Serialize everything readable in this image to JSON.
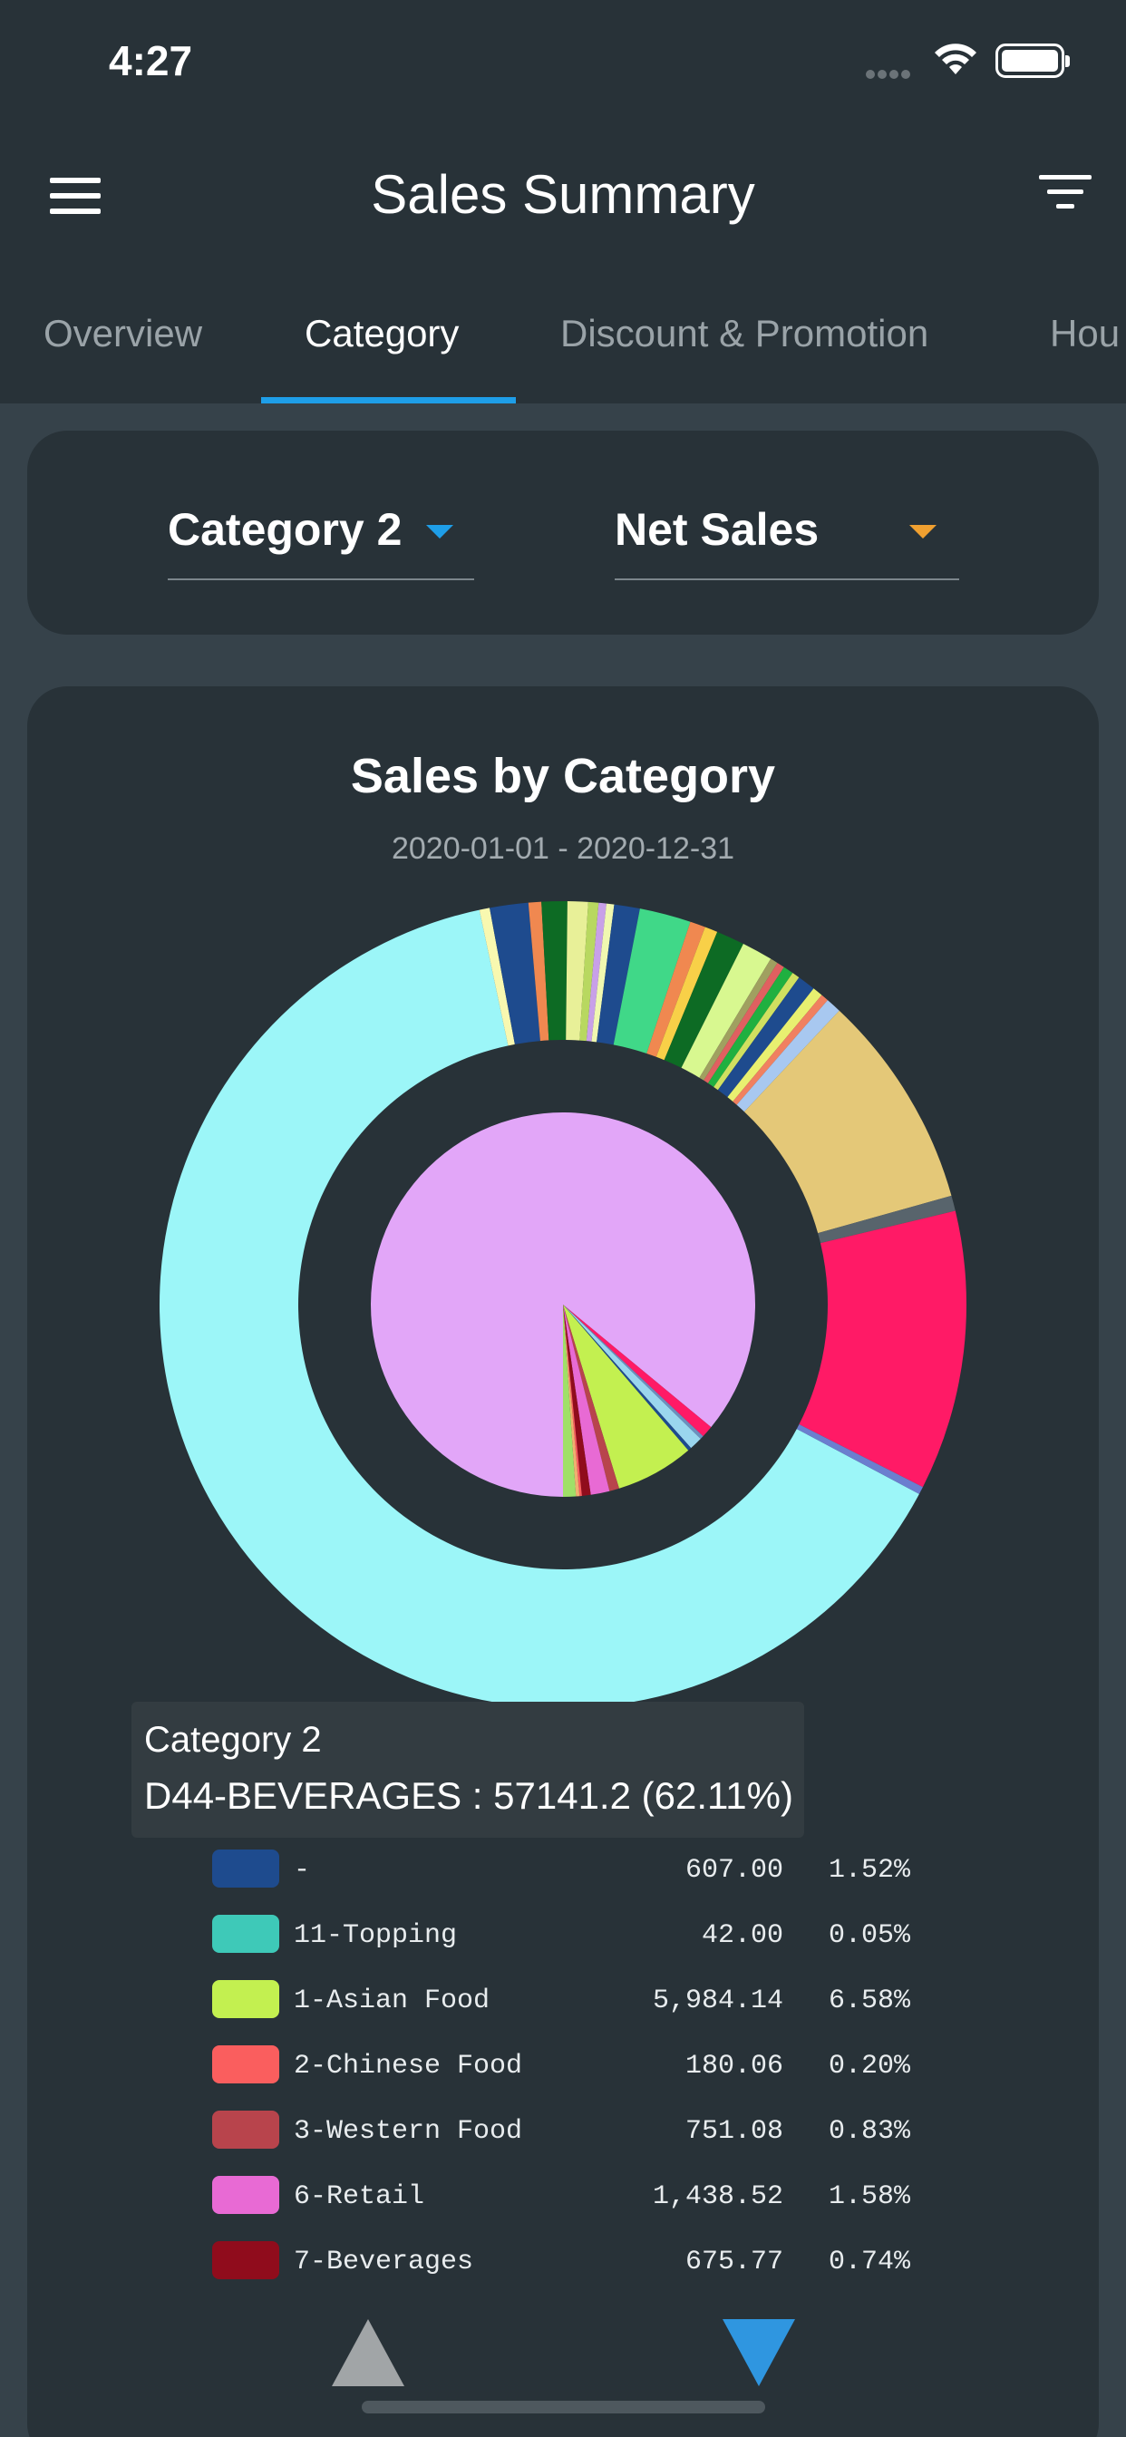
{
  "status": {
    "time": "4:27"
  },
  "header": {
    "title": "Sales Summary"
  },
  "tabs": [
    {
      "label": "Overview"
    },
    {
      "label": "Category"
    },
    {
      "label": "Discount & Promotion"
    },
    {
      "label": "Hou"
    }
  ],
  "selectors": {
    "category": "Category 2",
    "metric": "Net Sales"
  },
  "chart": {
    "title": "Sales by Category",
    "subtitle": "2020-01-01 - 2020-12-31"
  },
  "tooltip": {
    "line1": "Category 2",
    "line2": "D44-BEVERAGES : 57141.2 (62.11%)"
  },
  "legend": [
    {
      "name": "-",
      "value": "607.00",
      "percent": "1.52%",
      "color": "#1e4b8e"
    },
    {
      "name": "11-Topping",
      "value": "42.00",
      "percent": "0.05%",
      "color": "#3ec9b8"
    },
    {
      "name": "1-Asian Food",
      "value": "5,984.14",
      "percent": "6.58%",
      "color": "#c3f050"
    },
    {
      "name": "2-Chinese Food",
      "value": "180.06",
      "percent": "0.20%",
      "color": "#fa5e5e"
    },
    {
      "name": "3-Western Food",
      "value": "751.08",
      "percent": "0.83%",
      "color": "#b8444c"
    },
    {
      "name": "6-Retail",
      "value": "1,438.52",
      "percent": "1.58%",
      "color": "#e86ad4"
    },
    {
      "name": "7-Beverages",
      "value": "675.77",
      "percent": "0.74%",
      "color": "#900c1c"
    }
  ],
  "chart_data": {
    "type": "pie",
    "title": "Sales by Category",
    "subtitle": "2020-01-01 - 2020-12-31",
    "inner": [
      {
        "color": "#e2a6f8",
        "percent": 86.0
      },
      {
        "color": "#ff1a66",
        "percent": 1.0
      },
      {
        "color": "#6b8fbf",
        "percent": 0.3
      },
      {
        "color": "#9ad6ee",
        "percent": 1.1
      },
      {
        "color": "#1e4b8e",
        "percent": 0.3
      },
      {
        "color": "#c3f050",
        "percent": 6.58
      },
      {
        "color": "#b8444c",
        "percent": 0.83
      },
      {
        "color": "#e86ad4",
        "percent": 1.58
      },
      {
        "color": "#900c1c",
        "percent": 0.74
      },
      {
        "color": "#fa5e5e",
        "percent": 0.2
      },
      {
        "color": "#f0b070",
        "percent": 0.3
      },
      {
        "color": "#a0e068",
        "percent": 1.07
      }
    ],
    "outer": [
      {
        "color": "#9cf6f8",
        "percent": 62.11,
        "label": "D44-BEVERAGES"
      },
      {
        "color": "#f8f8b0",
        "percent": 0.4
      },
      {
        "color": "#1e4b8e",
        "percent": 1.5
      },
      {
        "color": "#f08850",
        "percent": 0.5
      },
      {
        "color": "#0d6b24",
        "percent": 1.0
      },
      {
        "color": "#e8f098",
        "percent": 0.8
      },
      {
        "color": "#b8d860",
        "percent": 0.4
      },
      {
        "color": "#c8a0e8",
        "percent": 0.3
      },
      {
        "color": "#f0f8b0",
        "percent": 0.3
      },
      {
        "color": "#1e4b8e",
        "percent": 1.0
      },
      {
        "color": "#40d888",
        "percent": 2.0
      },
      {
        "color": "#f08850",
        "percent": 0.6
      },
      {
        "color": "#f8d048",
        "percent": 0.5
      },
      {
        "color": "#0d6b24",
        "percent": 1.1
      },
      {
        "color": "#d8f890",
        "percent": 1.2
      },
      {
        "color": "#a0a060",
        "percent": 0.3
      },
      {
        "color": "#e06060",
        "percent": 0.3
      },
      {
        "color": "#20b040",
        "percent": 0.4
      },
      {
        "color": "#d0e060",
        "percent": 0.3
      },
      {
        "color": "#1e4b8e",
        "percent": 0.7
      },
      {
        "color": "#e8f070",
        "percent": 0.4
      },
      {
        "color": "#f08060",
        "percent": 0.3
      },
      {
        "color": "#a8c8f0",
        "percent": 0.6
      },
      {
        "color": "#e4c878",
        "percent": 8.4
      },
      {
        "color": "#58646c",
        "percent": 0.6
      },
      {
        "color": "#ff1a66",
        "percent": 10.89
      },
      {
        "color": "#6b7ecf",
        "percent": 0.3
      }
    ]
  }
}
